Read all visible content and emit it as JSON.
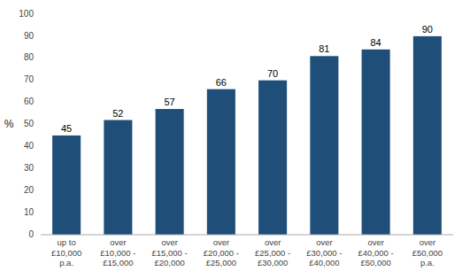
{
  "chart_data": {
    "type": "bar",
    "categories": [
      "up to\n£10,000\np.a.",
      "over\n£10,000 -\n£15,000",
      "over\n£15,000 -\n£20,000",
      "over\n£20,000 -\n£25,000",
      "over\n£25,000 -\n£30,000",
      "over\n£30,000 -\n£40,000",
      "over\n£40,000 -\n£50,000",
      "over\n£50,000\np.a."
    ],
    "values": [
      45,
      52,
      57,
      66,
      70,
      81,
      84,
      90
    ],
    "color": "#1F4E79",
    "ylabel": "%",
    "ylim": [
      0,
      100
    ],
    "yticks": [
      0,
      10,
      20,
      30,
      40,
      50,
      60,
      70,
      80,
      90,
      100
    ],
    "grid": false,
    "data_labels": true
  }
}
